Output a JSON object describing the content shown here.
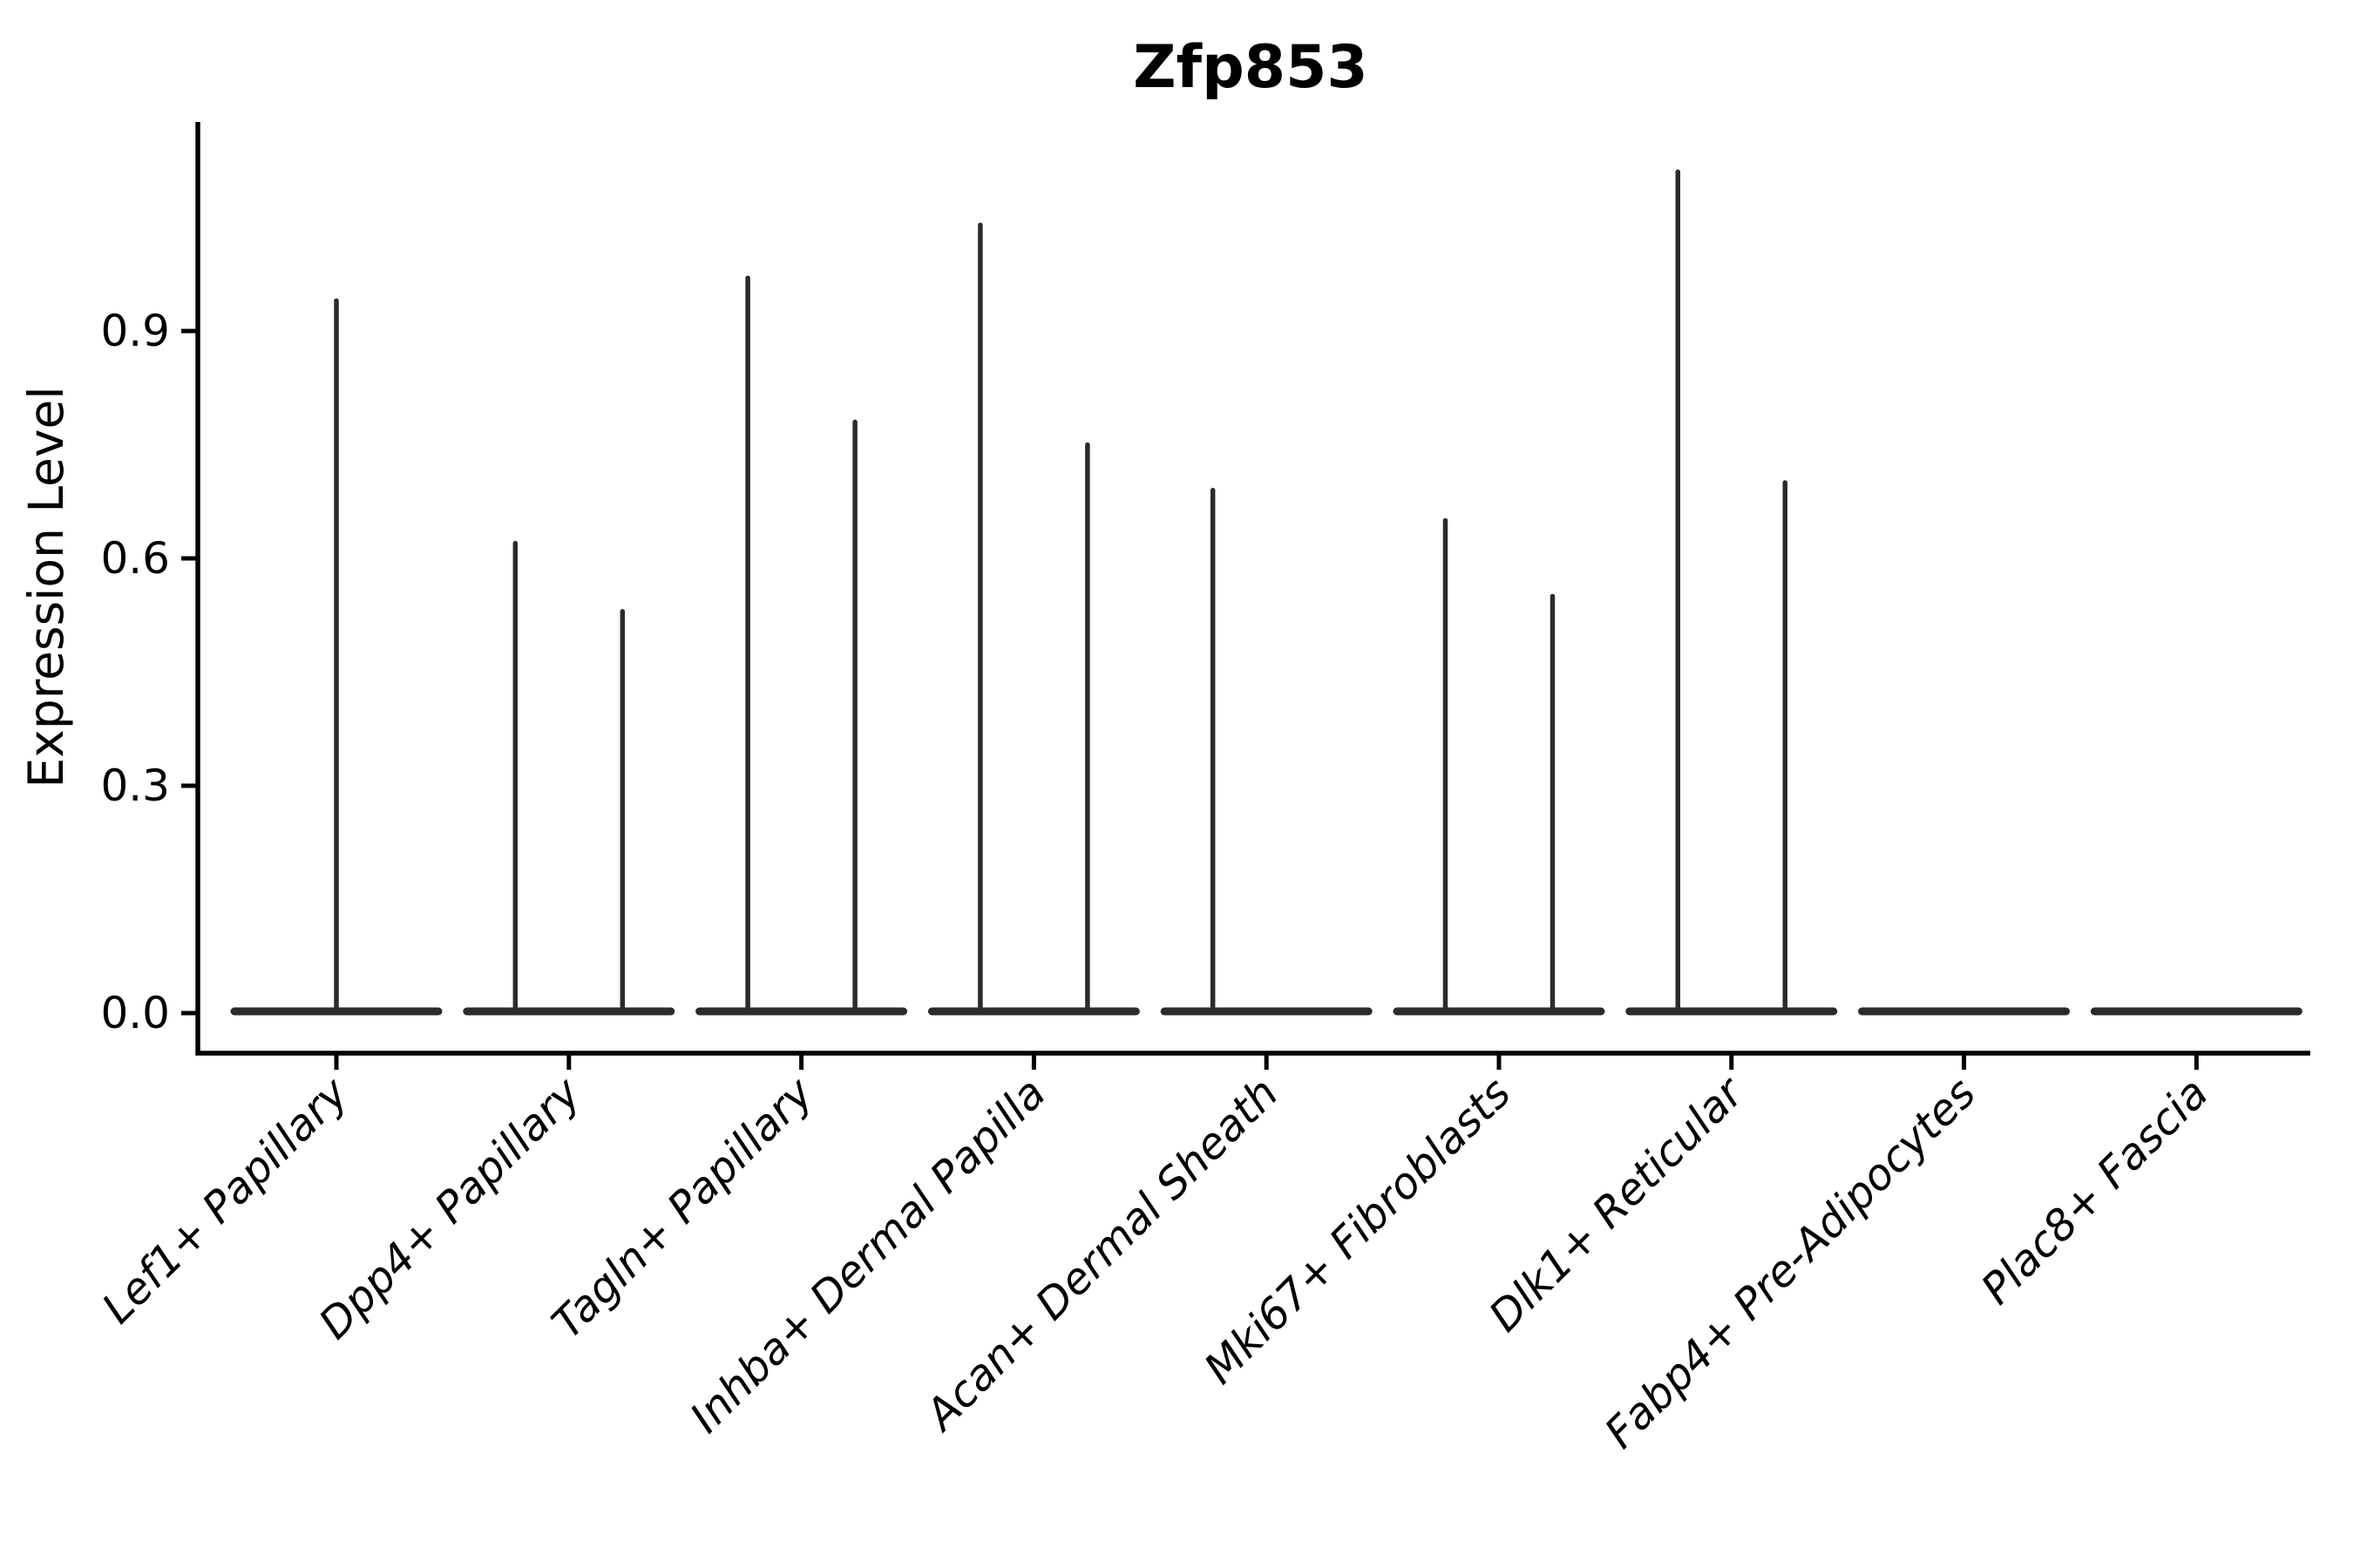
{
  "chart_data": {
    "type": "violin",
    "title": "Zfp853",
    "xlabel": "",
    "ylabel": "Expression Level",
    "y_ticks": [
      0.0,
      0.3,
      0.6,
      0.9
    ],
    "y_tick_labels": [
      "0.0",
      "0.3",
      "0.6",
      "0.9"
    ],
    "ylim": [
      0.0,
      1.17
    ],
    "grid": false,
    "legend_position": "none",
    "violin_color": "#2b2b2b",
    "axis_color": "#000000",
    "background_color": "#ffffff",
    "note": "Each violin is a near-zero expression distribution: wide flat base at 0 with a thin central spike rising to the maximum expression value. Categories with two values have two side-by-side violins; zero maxima mean a flat violin with no spike.",
    "categories": [
      {
        "label": "Lef1+ Papillary",
        "violin_maxima": [
          0.94
        ]
      },
      {
        "label": "Dpp4+ Papillary",
        "violin_maxima": [
          0.62,
          0.53
        ]
      },
      {
        "label": "Tagln+ Papillary",
        "violin_maxima": [
          0.97,
          0.78
        ]
      },
      {
        "label": "Inhba+ Dermal Papilla",
        "violin_maxima": [
          1.04,
          0.75
        ]
      },
      {
        "label": "Acan+ Dermal Sheath",
        "violin_maxima": [
          0.69,
          0.0
        ]
      },
      {
        "label": "Mki67+ Fibroblasts",
        "violin_maxima": [
          0.65,
          0.55
        ]
      },
      {
        "label": "Dlk1+ Reticular",
        "violin_maxima": [
          1.11,
          0.7
        ]
      },
      {
        "label": "Fabp4+ Pre-Adipocytes",
        "violin_maxima": [
          0.0,
          0.0
        ]
      },
      {
        "label": "Plac8+ Fascia",
        "violin_maxima": [
          0.0,
          0.0
        ]
      }
    ]
  }
}
